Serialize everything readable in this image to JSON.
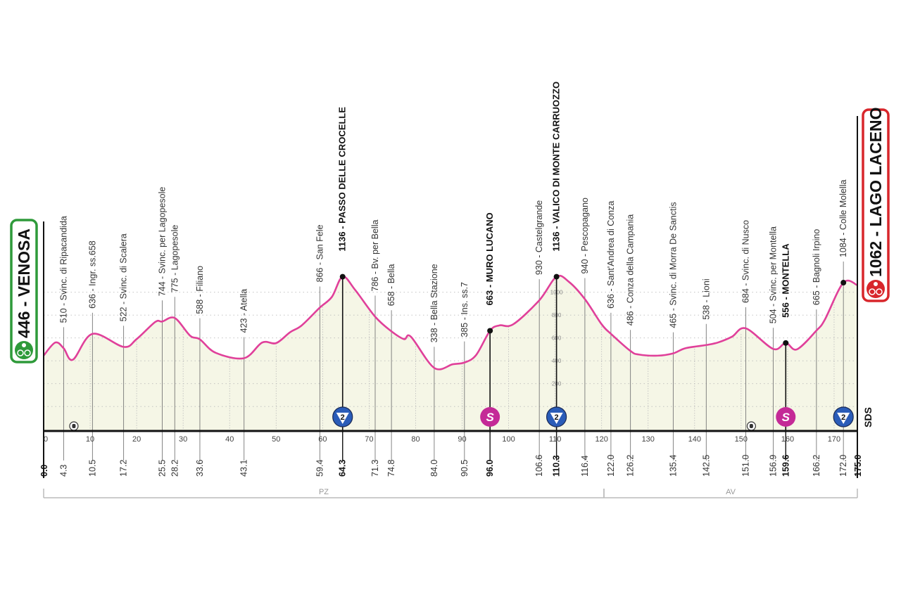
{
  "chart_data": {
    "type": "area",
    "title": "",
    "xlabel": "",
    "ylabel": "",
    "xlim": [
      0,
      175
    ],
    "ylim": [
      0,
      1200
    ],
    "grid": true,
    "x_ticks": [
      "0",
      "10",
      "20",
      "30",
      "40",
      "50",
      "60",
      "70",
      "80",
      "90",
      "100",
      "110",
      "120",
      "130",
      "140",
      "150",
      "160",
      "170"
    ],
    "y_ticks": [
      "200",
      "400",
      "600",
      "800",
      "1000"
    ],
    "profile": [
      [
        0,
        446
      ],
      [
        2.5,
        560
      ],
      [
        4.3,
        510
      ],
      [
        6.3,
        410
      ],
      [
        10.5,
        636
      ],
      [
        17.2,
        522
      ],
      [
        20,
        590
      ],
      [
        24,
        740
      ],
      [
        25.5,
        744
      ],
      [
        28.2,
        775
      ],
      [
        31.5,
        620
      ],
      [
        33.6,
        588
      ],
      [
        37,
        470
      ],
      [
        43.1,
        423
      ],
      [
        47,
        560
      ],
      [
        50,
        555
      ],
      [
        53,
        650
      ],
      [
        55.5,
        710
      ],
      [
        59.4,
        866
      ],
      [
        62,
        960
      ],
      [
        64.3,
        1136
      ],
      [
        67,
        1020
      ],
      [
        71.3,
        786
      ],
      [
        74.8,
        658
      ],
      [
        77.5,
        590
      ],
      [
        79,
        610
      ],
      [
        84.0,
        338
      ],
      [
        88,
        370
      ],
      [
        90.5,
        385
      ],
      [
        93,
        450
      ],
      [
        96.0,
        663
      ],
      [
        98,
        710
      ],
      [
        101,
        720
      ],
      [
        106.6,
        930
      ],
      [
        110.3,
        1136
      ],
      [
        113,
        1090
      ],
      [
        116.4,
        940
      ],
      [
        120,
        720
      ],
      [
        122.0,
        636
      ],
      [
        126.2,
        486
      ],
      [
        128,
        455
      ],
      [
        132,
        445
      ],
      [
        135.4,
        465
      ],
      [
        138,
        510
      ],
      [
        142.5,
        538
      ],
      [
        145,
        560
      ],
      [
        148,
        610
      ],
      [
        151.0,
        684
      ],
      [
        156.9,
        504
      ],
      [
        159.6,
        556
      ],
      [
        162,
        500
      ],
      [
        166.2,
        665
      ],
      [
        168,
        760
      ],
      [
        172.0,
        1084
      ],
      [
        175,
        1062
      ]
    ],
    "start": {
      "label": "446 - VENOSA",
      "color": "#2e9a3a"
    },
    "finish": {
      "label": "1062 - LAGO LACENO",
      "color": "#d8262b"
    },
    "line_color": "#e0409a",
    "fill_color": "#f5f6e6",
    "waypoints": [
      {
        "km": "4.3",
        "x": 4.3,
        "label": "510 - Svinc. di Ripacandida",
        "bold": false
      },
      {
        "km": "10.5",
        "x": 10.5,
        "label": "636 - Ingr. ss.658",
        "bold": false
      },
      {
        "km": "17.2",
        "x": 17.2,
        "label": "522 - Svinc. di Scalera",
        "bold": false
      },
      {
        "km": "25.5",
        "x": 25.5,
        "label": "744 - Svinc. per Lagopesole",
        "bold": false
      },
      {
        "km": "28.2",
        "x": 28.2,
        "label": "775 - Lagopesole",
        "bold": false
      },
      {
        "km": "33.6",
        "x": 33.6,
        "label": "588 - Filiano",
        "bold": false
      },
      {
        "km": "43.1",
        "x": 43.1,
        "label": "423 - Atella",
        "bold": false
      },
      {
        "km": "59.4",
        "x": 59.4,
        "label": "866 - San Fele",
        "bold": false
      },
      {
        "km": "64.3",
        "x": 64.3,
        "label": "1136 - PASSO DELLE CROCELLE",
        "bold": true,
        "marker": "gpm",
        "cat": "2"
      },
      {
        "km": "71.3",
        "x": 71.3,
        "label": "786 - Bv. per Bella",
        "bold": false
      },
      {
        "km": "74.8",
        "x": 74.8,
        "label": "658 - Bella",
        "bold": false
      },
      {
        "km": "84.0",
        "x": 84.0,
        "label": "338 - Bella Stazione",
        "bold": false
      },
      {
        "km": "90.5",
        "x": 90.5,
        "label": "385 - Ins. ss.7",
        "bold": false
      },
      {
        "km": "96.0",
        "x": 96.0,
        "label": "663 - MURO LUCANO",
        "bold": true,
        "marker": "sprint",
        "cat": "S"
      },
      {
        "km": "106.6",
        "x": 106.6,
        "label": "930 - Castelgrande",
        "bold": false
      },
      {
        "km": "110.3",
        "x": 110.3,
        "label": "1136 - VALICO DI MONTE CARRUOZZO",
        "bold": true,
        "marker": "gpm",
        "cat": "2"
      },
      {
        "km": "116.4",
        "x": 116.4,
        "label": "940 - Pescopagano",
        "bold": false
      },
      {
        "km": "122.0",
        "x": 122.0,
        "label": "636 - Sant'Andrea di Conza",
        "bold": false
      },
      {
        "km": "126.2",
        "x": 126.2,
        "label": "486 - Conza della Campania",
        "bold": false
      },
      {
        "km": "135.4",
        "x": 135.4,
        "label": "465 - Svinc. di Morra De Sanctis",
        "bold": false
      },
      {
        "km": "142.5",
        "x": 142.5,
        "label": "538 - Lioni",
        "bold": false
      },
      {
        "km": "151.0",
        "x": 151.0,
        "label": "684 - Svinc. di Nusco",
        "bold": false
      },
      {
        "km": "156.9",
        "x": 156.9,
        "label": "504 - Svinc. per Montella",
        "bold": false
      },
      {
        "km": "159.6",
        "x": 159.6,
        "label": "556 - MONTELLA",
        "bold": true,
        "marker": "sprint",
        "cat": "S"
      },
      {
        "km": "166.2",
        "x": 166.2,
        "label": "665 - Bagnoli Irpino",
        "bold": false
      },
      {
        "km": "172.0",
        "x": 172.0,
        "label": "1084 - Colle Molella",
        "bold": false,
        "marker": "gpm",
        "cat": "2"
      }
    ],
    "start_km": "0.0",
    "finish_km": "175.0",
    "tunnels_km": [
      6.5,
      152.2
    ],
    "provinces": [
      {
        "label": "PZ",
        "from": 0,
        "to": 120.5
      },
      {
        "label": "AV",
        "from": 120.5,
        "to": 175
      }
    ],
    "footer_mark": "SDS",
    "gpm_color": "#2a5cb8",
    "sprint_color": "#c42a97"
  }
}
